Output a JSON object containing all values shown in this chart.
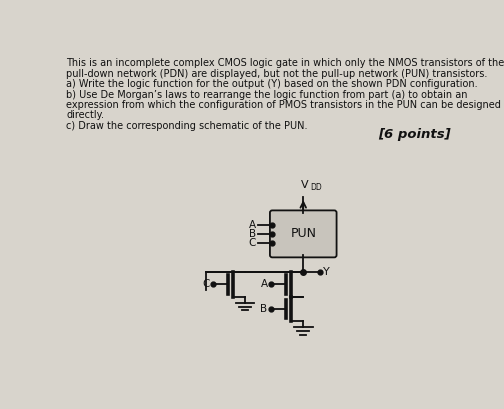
{
  "title_lines": [
    "This is an incomplete complex CMOS logic gate in which only the NMOS transistors of the",
    "pull-down network (PDN) are displayed, but not the pull-up network (PUN) transistors.",
    "a) Write the logic function for the output (Y) based on the shown PDN configuration.",
    "b) Use De Morgan’s laws to rearrange the logic function from part (a) to obtain an",
    "expression from which the configuration of PMOS transistors in the PUN can be designed",
    "directly.",
    "c) Draw the corresponding schematic of the PUN."
  ],
  "points_text": "[6 points]",
  "bg_color": "#d8d4cc",
  "circuit_bg": "#d0ccc4",
  "text_color": "#111111",
  "vdd_label": "V",
  "vdd_sub": "DD",
  "pun_label": "PUN",
  "output_label": "Y",
  "font_size_title": 7.0,
  "font_size_pts": 9.5
}
